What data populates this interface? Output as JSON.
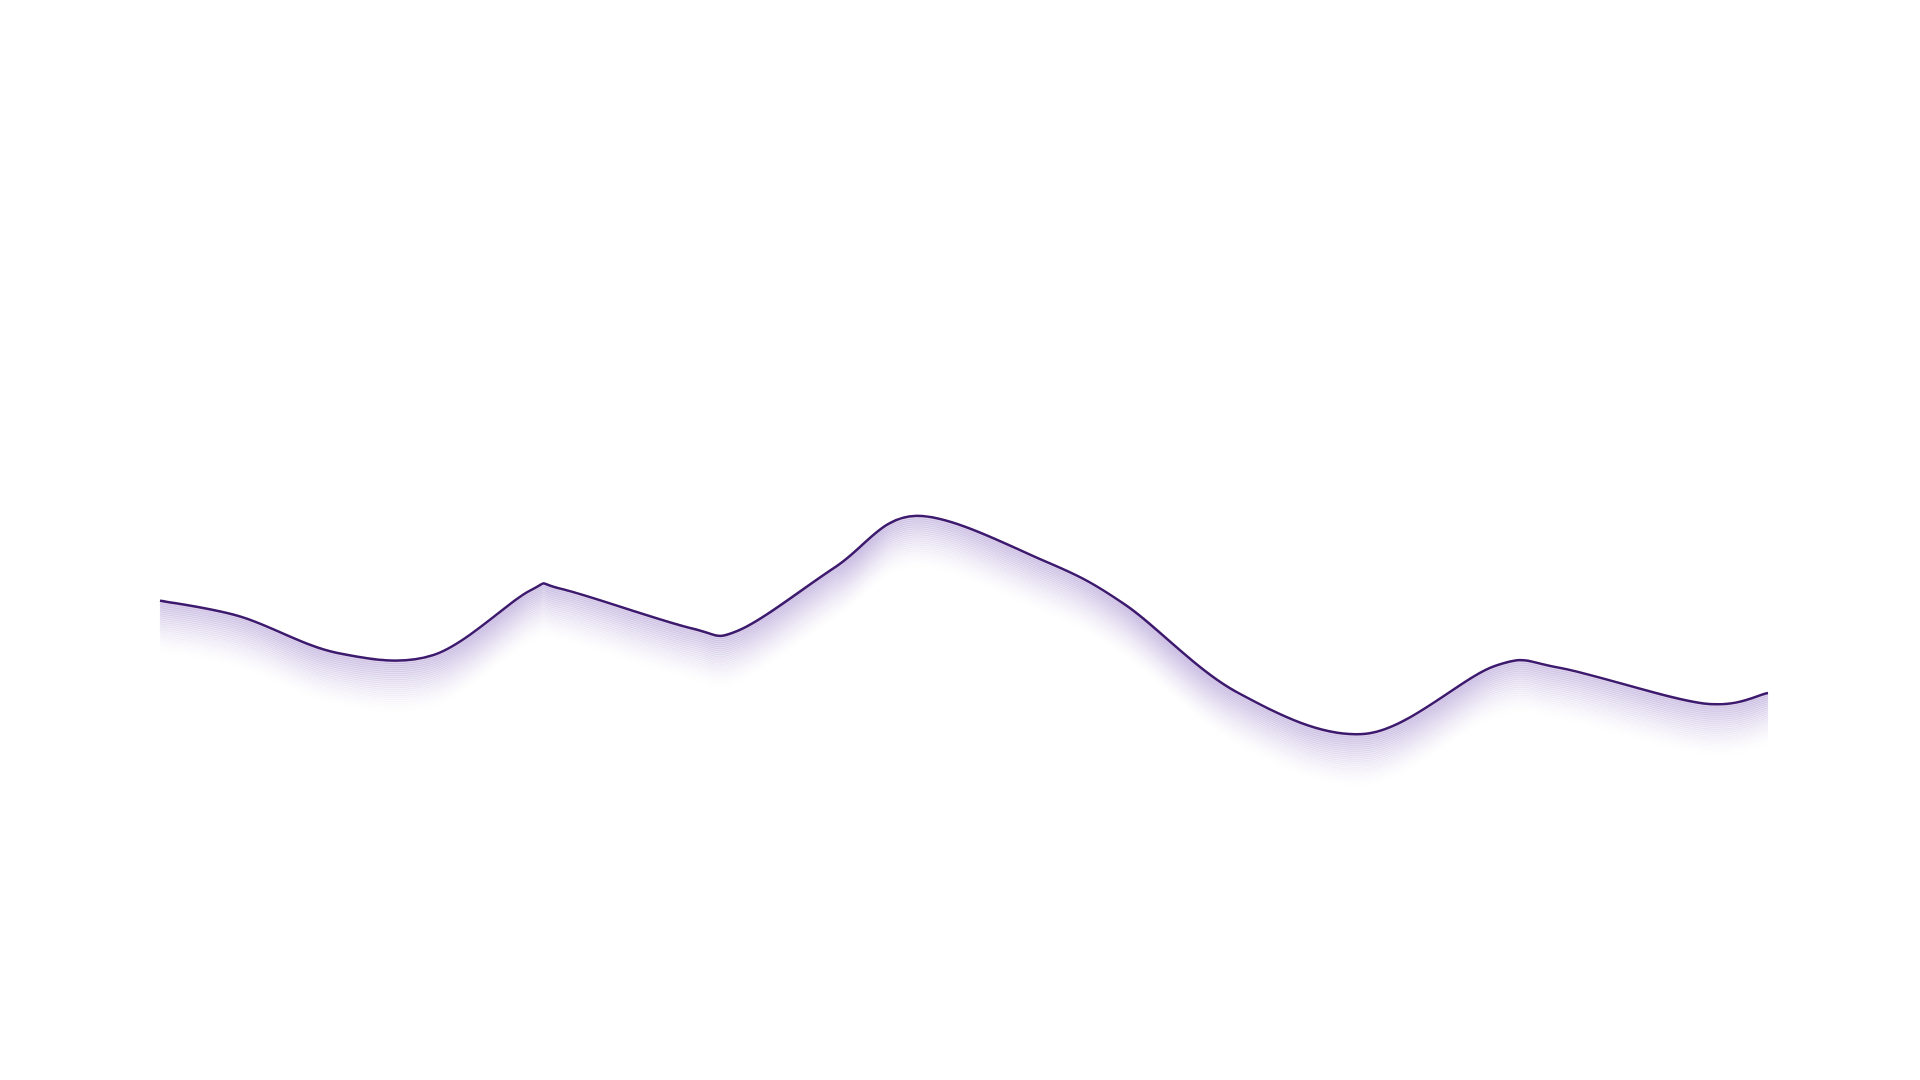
{
  "chart_data": {
    "type": "line",
    "title": "",
    "xlabel": "",
    "ylabel": "",
    "grid": false,
    "legend": "none",
    "axes_visible": false,
    "xlim": [
      0,
      1
    ],
    "ylim": [
      0,
      1
    ],
    "series": [
      {
        "color": "#3d1a6e",
        "fade_color": "#b8a6d9",
        "x": [
          0.0,
          0.05,
          0.11,
          0.17,
          0.23,
          0.25,
          0.33,
          0.36,
          0.42,
          0.47,
          0.55,
          0.6,
          0.67,
          0.75,
          0.83,
          0.87,
          0.96,
          1.0
        ],
        "y": [
          0.508,
          0.479,
          0.413,
          0.409,
          0.526,
          0.529,
          0.458,
          0.454,
          0.569,
          0.662,
          0.58,
          0.501,
          0.341,
          0.266,
          0.389,
          0.386,
          0.321,
          0.34
        ]
      }
    ]
  }
}
